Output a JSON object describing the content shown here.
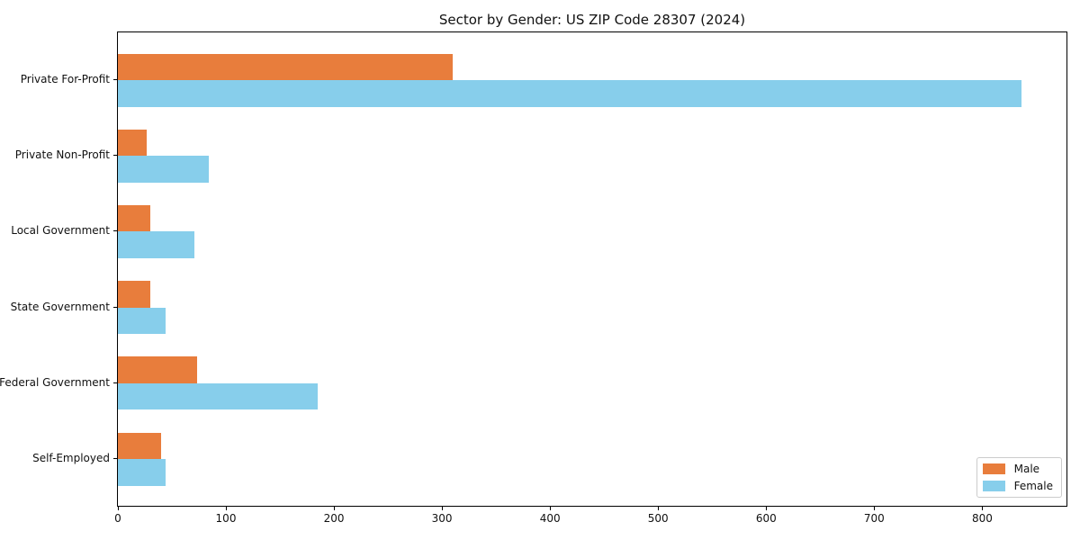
{
  "chart_data": {
    "type": "bar",
    "orientation": "horizontal",
    "title": "Sector by Gender: US ZIP Code 28307 (2024)",
    "categories": [
      "Private For-Profit",
      "Private Non-Profit",
      "Local Government",
      "State Government",
      "Federal Government",
      "Self-Employed"
    ],
    "series": [
      {
        "name": "Male",
        "color": "#e87d3c",
        "values": [
          310,
          27,
          30,
          30,
          73,
          40
        ]
      },
      {
        "name": "Female",
        "color": "#87ceeb",
        "values": [
          836,
          84,
          71,
          44,
          185,
          44
        ]
      }
    ],
    "xlim": [
      0,
      878
    ],
    "x_ticks": [
      "0",
      "100",
      "200",
      "300",
      "400",
      "500",
      "600",
      "700",
      "800"
    ],
    "xlabel": "",
    "ylabel": "",
    "grid": false,
    "legend_position": "lower right"
  }
}
